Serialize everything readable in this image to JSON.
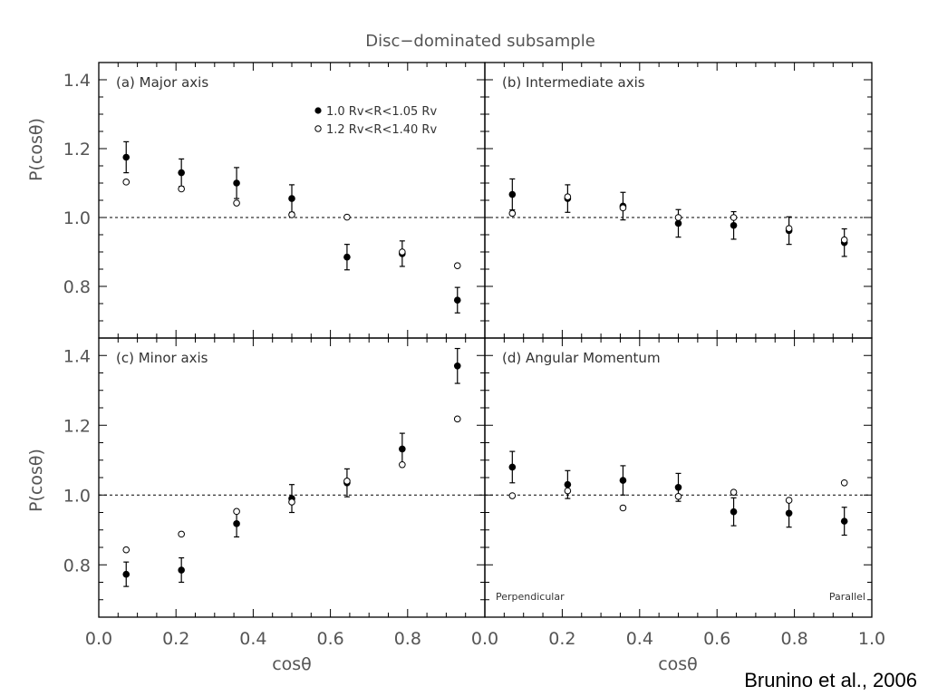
{
  "figure": {
    "title": "Disc−dominated subsample",
    "ylabel": "P(cosθ)",
    "xlabel": "cosθ",
    "credit": "Brunino et al., 2006",
    "reference_line_y": 1.0,
    "xlim": [
      0.0,
      1.0
    ],
    "ylim": [
      0.65,
      1.45
    ],
    "yticks": [
      "0.8",
      "1.0",
      "1.2",
      "1.4"
    ],
    "xticks_left": [
      "0.0",
      "0.2",
      "0.4",
      "0.6",
      "0.8",
      "1.0"
    ],
    "xticks_bottom_left": [
      "0.0",
      "0.2",
      "0.4",
      "0.6",
      "0.8"
    ],
    "xticks_bottom_right": [
      "0.0",
      "0.2",
      "0.4",
      "0.6",
      "0.8",
      "1.0"
    ],
    "legend": [
      {
        "marker": "●",
        "label": "1.0 Rv<R<1.05 Rv"
      },
      {
        "marker": "○",
        "label": "1.2 Rv<R<1.40 Rv"
      }
    ],
    "perpendicular_label": "Perpendicular",
    "parallel_label": "Parallel"
  },
  "chart_data": [
    {
      "type": "scatter",
      "panel": "a",
      "title": "(a) Major axis",
      "x": [
        0.071,
        0.214,
        0.357,
        0.5,
        0.643,
        0.786,
        0.929
      ],
      "series": [
        {
          "name": "1.0 Rv<R<1.05 Rv",
          "marker": "filled",
          "y": [
            1.175,
            1.13,
            1.1,
            1.055,
            0.885,
            0.895,
            0.76
          ],
          "err": [
            0.045,
            0.04,
            0.045,
            0.04,
            0.037,
            0.037,
            0.037
          ]
        },
        {
          "name": "1.2 Rv<R<1.40 Rv",
          "marker": "open",
          "y": [
            1.103,
            1.083,
            1.042,
            1.008,
            1.001,
            0.9,
            0.86
          ]
        }
      ]
    },
    {
      "type": "scatter",
      "panel": "b",
      "title": "(b) Intermediate axis",
      "x": [
        0.071,
        0.214,
        0.357,
        0.5,
        0.643,
        0.786,
        0.929
      ],
      "series": [
        {
          "name": "1.0 Rv<R<1.05 Rv",
          "marker": "filled",
          "y": [
            1.067,
            1.055,
            1.033,
            0.983,
            0.977,
            0.962,
            0.927
          ],
          "err": [
            0.045,
            0.04,
            0.04,
            0.04,
            0.04,
            0.04,
            0.04
          ]
        },
        {
          "name": "1.2 Rv<R<1.40 Rv",
          "marker": "open",
          "y": [
            1.012,
            1.06,
            1.028,
            1.0,
            1.0,
            0.968,
            0.935
          ]
        }
      ]
    },
    {
      "type": "scatter",
      "panel": "c",
      "title": "(c) Minor axis",
      "x": [
        0.071,
        0.214,
        0.357,
        0.5,
        0.643,
        0.786,
        0.929
      ],
      "series": [
        {
          "name": "1.0 Rv<R<1.05 Rv",
          "marker": "filled",
          "y": [
            0.773,
            0.785,
            0.918,
            0.99,
            1.035,
            1.132,
            1.37
          ],
          "err": [
            0.035,
            0.035,
            0.038,
            0.04,
            0.04,
            0.045,
            0.05
          ]
        },
        {
          "name": "1.2 Rv<R<1.40 Rv",
          "marker": "open",
          "y": [
            0.843,
            0.888,
            0.953,
            0.98,
            1.04,
            1.087,
            1.218
          ]
        }
      ]
    },
    {
      "type": "scatter",
      "panel": "d",
      "title": "(d) Angular Momentum",
      "x": [
        0.071,
        0.214,
        0.357,
        0.5,
        0.643,
        0.786,
        0.929
      ],
      "series": [
        {
          "name": "1.0 Rv<R<1.05 Rv",
          "marker": "filled",
          "y": [
            1.08,
            1.03,
            1.042,
            1.022,
            0.952,
            0.948,
            0.925
          ],
          "err": [
            0.045,
            0.04,
            0.042,
            0.04,
            0.04,
            0.04,
            0.04
          ]
        },
        {
          "name": "1.2 Rv<R<1.40 Rv",
          "marker": "open",
          "y": [
            0.998,
            1.012,
            0.963,
            0.996,
            1.008,
            0.985,
            1.035
          ]
        }
      ]
    }
  ]
}
